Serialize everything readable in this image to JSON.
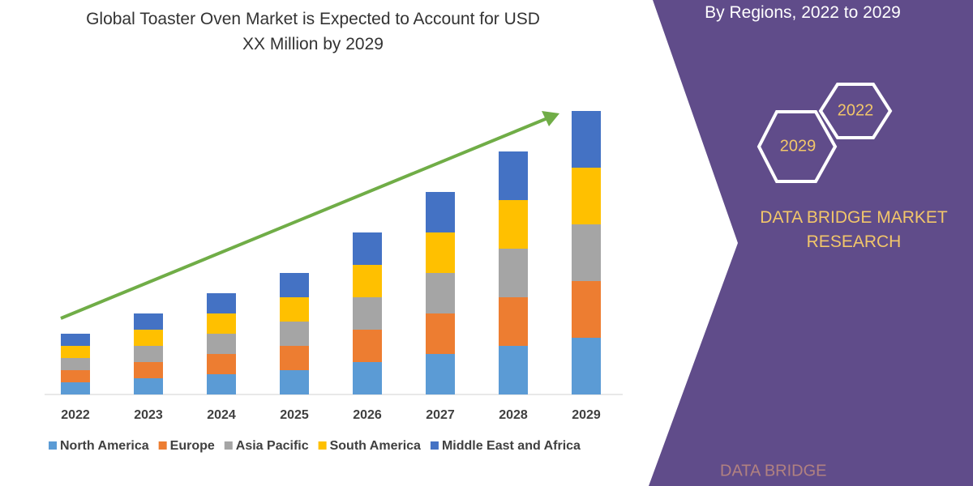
{
  "chart_data": {
    "type": "bar",
    "stacked": true,
    "title": "Global Toaster Oven Market is Expected to Account for USD XX Million by 2029",
    "subtitle": "By Regions, 2022 to 2029",
    "categories": [
      "2022",
      "2023",
      "2024",
      "2025",
      "2026",
      "2027",
      "2028",
      "2029"
    ],
    "series": [
      {
        "name": "North America",
        "color": "#5b9bd5",
        "values": [
          15,
          20,
          25,
          30,
          40,
          50,
          60,
          70
        ]
      },
      {
        "name": "Europe",
        "color": "#ed7d31",
        "values": [
          15,
          20,
          25,
          30,
          40,
          50,
          60,
          70
        ]
      },
      {
        "name": "Asia Pacific",
        "color": "#a5a5a5",
        "values": [
          15,
          20,
          25,
          30,
          40,
          50,
          60,
          70
        ]
      },
      {
        "name": "South America",
        "color": "#ffc000",
        "values": [
          15,
          20,
          25,
          30,
          40,
          50,
          60,
          70
        ]
      },
      {
        "name": "Middle East and Africa",
        "color": "#4472c4",
        "values": [
          15,
          20,
          25,
          30,
          40,
          50,
          60,
          70
        ]
      }
    ]
  },
  "badges": [
    "2029",
    "2022"
  ],
  "brand": "DATA BRIDGE MARKET RESEARCH",
  "footer_logo": "DATA BRIDGE"
}
